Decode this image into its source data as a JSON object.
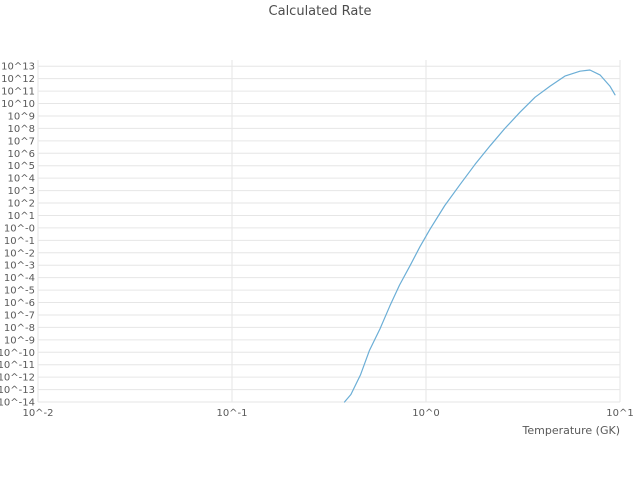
{
  "chart_data": {
    "type": "line",
    "title": "Calculated Rate",
    "xlabel": "Temperature (GK)",
    "ylabel": "",
    "x_scale": "log",
    "y_scale": "log",
    "xlim": [
      0.01,
      10
    ],
    "ylim": [
      1e-14,
      31600000000000.0
    ],
    "grid": true,
    "legend": "none",
    "x_tick_labels": [
      "10^-2",
      "10^-1",
      "10^0",
      "10^1"
    ],
    "x_tick_logs": [
      -2,
      -1,
      0,
      1
    ],
    "y_tick_labels": [
      "10^13",
      "10^12",
      "10^11",
      "10^10",
      "10^9",
      "10^8",
      "10^7",
      "10^6",
      "10^5",
      "10^4",
      "10^3",
      "10^2",
      "10^1",
      "10^-0",
      "10^-1",
      "10^-2",
      "10^-3",
      "10^-4",
      "10^-5",
      "10^-6",
      "10^-7",
      "10^-8",
      "10^-9",
      "10^-10",
      "10^-11",
      "10^-12",
      "10^-13",
      "10^-14"
    ],
    "y_tick_exps": [
      13,
      12,
      11,
      10,
      9,
      8,
      7,
      6,
      5,
      4,
      3,
      2,
      1,
      0,
      -1,
      -2,
      -3,
      -4,
      -5,
      -6,
      -7,
      -8,
      -9,
      -10,
      -11,
      -12,
      -13,
      -14
    ],
    "series": [
      {
        "name": "calculated-rate",
        "x": [
          0.38,
          0.41,
          0.46,
          0.51,
          0.58,
          0.65,
          0.73,
          0.83,
          0.93,
          1.05,
          1.25,
          1.5,
          1.79,
          2.14,
          2.55,
          3.05,
          3.65,
          4.36,
          5.2,
          6.22,
          7.0,
          7.89,
          8.87,
          9.42
        ],
        "y": [
          1e-14,
          4e-14,
          1.6e-12,
          1.3e-10,
          8e-09,
          5e-07,
          2.5e-05,
          0.001,
          0.03,
          0.8,
          63,
          3200,
          130000.0,
          4000000.0,
          100000000.0,
          2000000000.0,
          32000000000.0,
          250000000000.0,
          1600000000000.0,
          4000000000000.0,
          5000000000000.0,
          2000000000000.0,
          250000000000.0,
          50000000000.0
        ]
      }
    ],
    "colors": {
      "line": "#6baed6",
      "grid": "#e6e6e6",
      "tick_text": "#595959",
      "title_text": "#4d4d4d",
      "background": "#ffffff"
    }
  }
}
